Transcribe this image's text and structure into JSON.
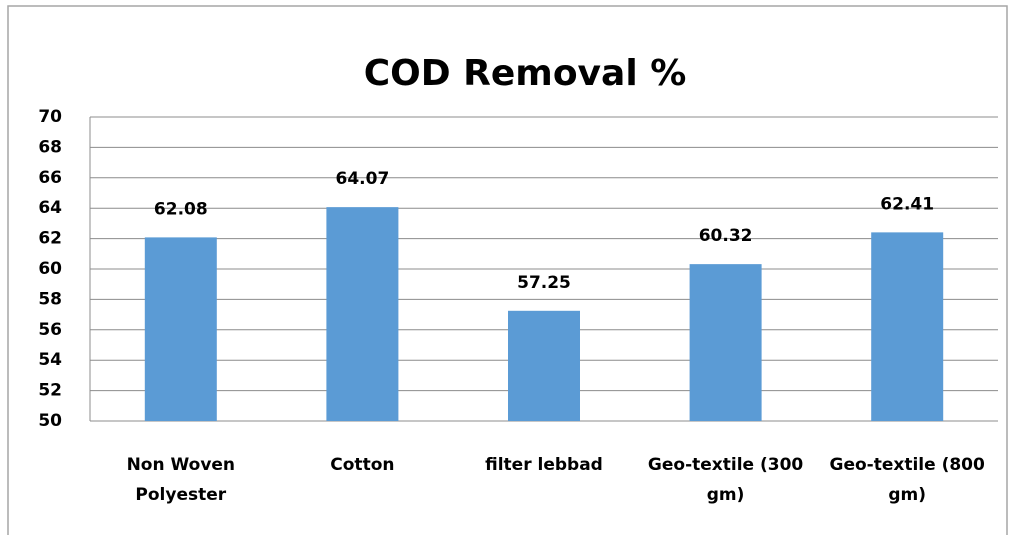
{
  "chart_data": {
    "type": "bar",
    "title": "COD Removal %",
    "categories": [
      "Non Woven Polyester",
      "Cotton",
      "filter lebbad",
      "Geo-textile (300 gm)",
      "Geo-textile (800 gm)"
    ],
    "values": [
      62.08,
      64.07,
      57.25,
      60.32,
      62.41
    ],
    "color": "#5b9bd5",
    "ylim": [
      50,
      70
    ],
    "yticks": [
      50,
      52,
      54,
      56,
      58,
      60,
      62,
      64,
      66,
      68,
      70
    ],
    "grid": true
  }
}
